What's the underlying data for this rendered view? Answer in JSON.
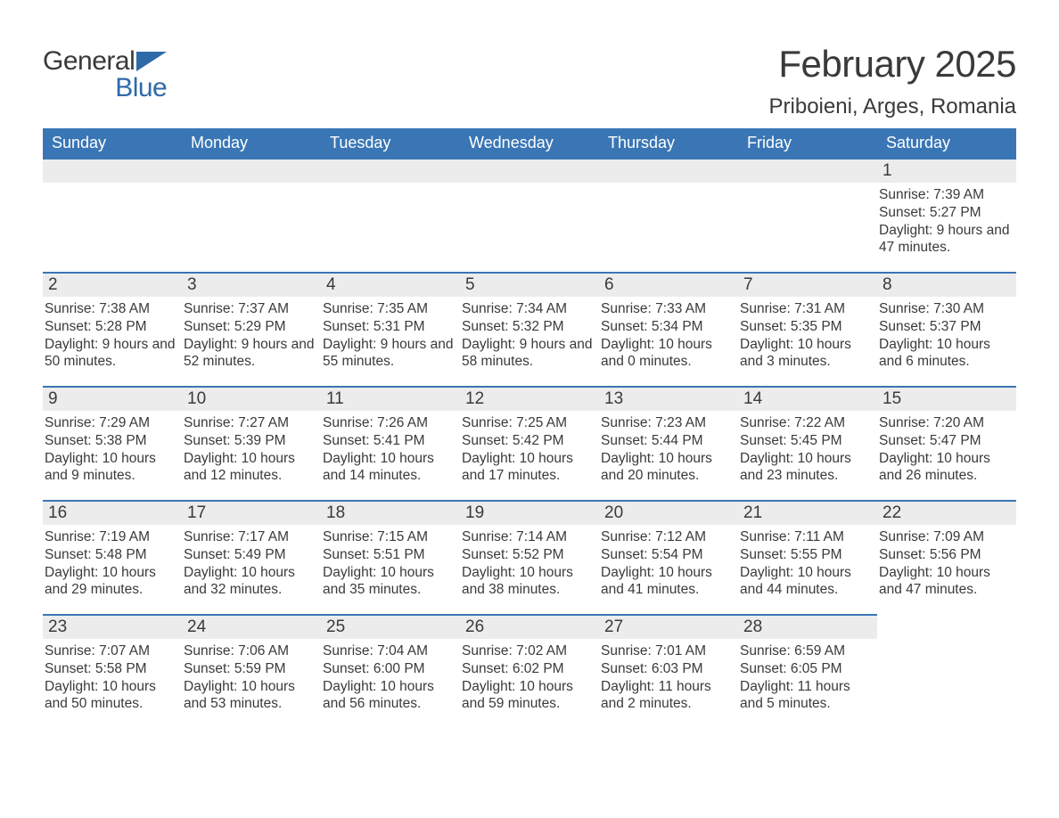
{
  "logo": {
    "word1": "General",
    "word2": "Blue",
    "flag_color": "#2f6aa8"
  },
  "title": "February 2025",
  "location": "Priboieni, Arges, Romania",
  "colors": {
    "header_bg": "#3a76b5",
    "header_text": "#ffffff",
    "dayhead_bg": "#ececec",
    "dayhead_border": "#3a76b5",
    "body_text": "#3a3a3a",
    "page_bg": "#ffffff"
  },
  "typography": {
    "title_fontsize": 42,
    "location_fontsize": 24,
    "weekday_fontsize": 18,
    "daynum_fontsize": 19,
    "body_fontsize": 15.5
  },
  "weekdays": [
    "Sunday",
    "Monday",
    "Tuesday",
    "Wednesday",
    "Thursday",
    "Friday",
    "Saturday"
  ],
  "weeks": [
    [
      null,
      null,
      null,
      null,
      null,
      null,
      {
        "n": "1",
        "sunrise": "7:39 AM",
        "sunset": "5:27 PM",
        "daylight": "9 hours and 47 minutes."
      }
    ],
    [
      {
        "n": "2",
        "sunrise": "7:38 AM",
        "sunset": "5:28 PM",
        "daylight": "9 hours and 50 minutes."
      },
      {
        "n": "3",
        "sunrise": "7:37 AM",
        "sunset": "5:29 PM",
        "daylight": "9 hours and 52 minutes."
      },
      {
        "n": "4",
        "sunrise": "7:35 AM",
        "sunset": "5:31 PM",
        "daylight": "9 hours and 55 minutes."
      },
      {
        "n": "5",
        "sunrise": "7:34 AM",
        "sunset": "5:32 PM",
        "daylight": "9 hours and 58 minutes."
      },
      {
        "n": "6",
        "sunrise": "7:33 AM",
        "sunset": "5:34 PM",
        "daylight": "10 hours and 0 minutes."
      },
      {
        "n": "7",
        "sunrise": "7:31 AM",
        "sunset": "5:35 PM",
        "daylight": "10 hours and 3 minutes."
      },
      {
        "n": "8",
        "sunrise": "7:30 AM",
        "sunset": "5:37 PM",
        "daylight": "10 hours and 6 minutes."
      }
    ],
    [
      {
        "n": "9",
        "sunrise": "7:29 AM",
        "sunset": "5:38 PM",
        "daylight": "10 hours and 9 minutes."
      },
      {
        "n": "10",
        "sunrise": "7:27 AM",
        "sunset": "5:39 PM",
        "daylight": "10 hours and 12 minutes."
      },
      {
        "n": "11",
        "sunrise": "7:26 AM",
        "sunset": "5:41 PM",
        "daylight": "10 hours and 14 minutes."
      },
      {
        "n": "12",
        "sunrise": "7:25 AM",
        "sunset": "5:42 PM",
        "daylight": "10 hours and 17 minutes."
      },
      {
        "n": "13",
        "sunrise": "7:23 AM",
        "sunset": "5:44 PM",
        "daylight": "10 hours and 20 minutes."
      },
      {
        "n": "14",
        "sunrise": "7:22 AM",
        "sunset": "5:45 PM",
        "daylight": "10 hours and 23 minutes."
      },
      {
        "n": "15",
        "sunrise": "7:20 AM",
        "sunset": "5:47 PM",
        "daylight": "10 hours and 26 minutes."
      }
    ],
    [
      {
        "n": "16",
        "sunrise": "7:19 AM",
        "sunset": "5:48 PM",
        "daylight": "10 hours and 29 minutes."
      },
      {
        "n": "17",
        "sunrise": "7:17 AM",
        "sunset": "5:49 PM",
        "daylight": "10 hours and 32 minutes."
      },
      {
        "n": "18",
        "sunrise": "7:15 AM",
        "sunset": "5:51 PM",
        "daylight": "10 hours and 35 minutes."
      },
      {
        "n": "19",
        "sunrise": "7:14 AM",
        "sunset": "5:52 PM",
        "daylight": "10 hours and 38 minutes."
      },
      {
        "n": "20",
        "sunrise": "7:12 AM",
        "sunset": "5:54 PM",
        "daylight": "10 hours and 41 minutes."
      },
      {
        "n": "21",
        "sunrise": "7:11 AM",
        "sunset": "5:55 PM",
        "daylight": "10 hours and 44 minutes."
      },
      {
        "n": "22",
        "sunrise": "7:09 AM",
        "sunset": "5:56 PM",
        "daylight": "10 hours and 47 minutes."
      }
    ],
    [
      {
        "n": "23",
        "sunrise": "7:07 AM",
        "sunset": "5:58 PM",
        "daylight": "10 hours and 50 minutes."
      },
      {
        "n": "24",
        "sunrise": "7:06 AM",
        "sunset": "5:59 PM",
        "daylight": "10 hours and 53 minutes."
      },
      {
        "n": "25",
        "sunrise": "7:04 AM",
        "sunset": "6:00 PM",
        "daylight": "10 hours and 56 minutes."
      },
      {
        "n": "26",
        "sunrise": "7:02 AM",
        "sunset": "6:02 PM",
        "daylight": "10 hours and 59 minutes."
      },
      {
        "n": "27",
        "sunrise": "7:01 AM",
        "sunset": "6:03 PM",
        "daylight": "11 hours and 2 minutes."
      },
      {
        "n": "28",
        "sunrise": "6:59 AM",
        "sunset": "6:05 PM",
        "daylight": "11 hours and 5 minutes."
      },
      null
    ]
  ],
  "labels": {
    "sunrise": "Sunrise: ",
    "sunset": "Sunset: ",
    "daylight": "Daylight: "
  }
}
